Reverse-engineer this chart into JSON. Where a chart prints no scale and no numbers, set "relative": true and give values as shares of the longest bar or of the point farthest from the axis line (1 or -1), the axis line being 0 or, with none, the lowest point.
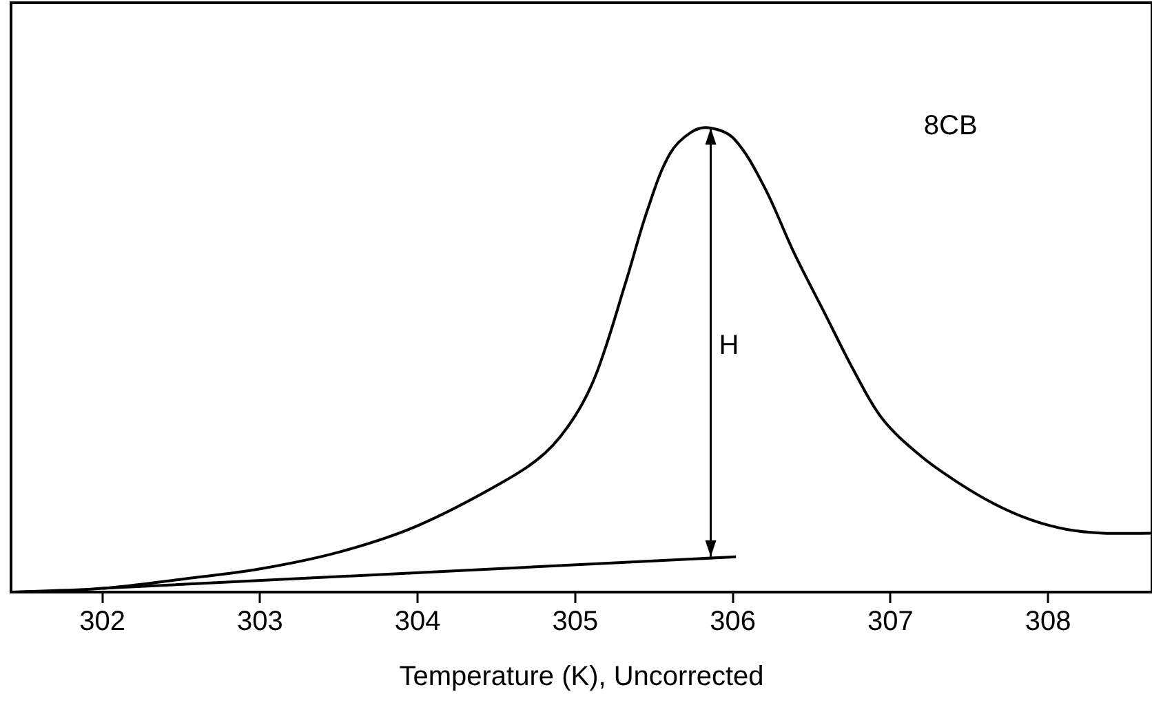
{
  "chart_data": {
    "type": "line",
    "relative": true,
    "xlabel": "Temperature (K), Uncorrected",
    "xlim": [
      301.42,
      308.66
    ],
    "xticks": [
      302,
      303,
      304,
      305,
      306,
      307,
      308
    ],
    "grid": false,
    "legend": false,
    "marker": "none",
    "series": [
      {
        "color": "#000000",
        "x": [
          301.42,
          302,
          302.53,
          303,
          303.51,
          304,
          304.53,
          304.81,
          305,
          305.14,
          305.32,
          305.46,
          305.6,
          305.74,
          305.86,
          306.01,
          306.2,
          306.39,
          306.58,
          306.77,
          306.95,
          307.19,
          307.42,
          307.66,
          307.89,
          308.12,
          308.35,
          308.66
        ],
        "values": [
          0,
          0.008,
          0.029,
          0.05,
          0.087,
          0.143,
          0.235,
          0.3,
          0.38,
          0.476,
          0.667,
          0.825,
          0.944,
          0.992,
          1,
          0.976,
          0.873,
          0.73,
          0.603,
          0.476,
          0.373,
          0.294,
          0.238,
          0.19,
          0.156,
          0.135,
          0.127,
          0.127
        ]
      },
      {
        "color": "#000000",
        "x": [
          302,
          306.02
        ],
        "values": [
          0.008,
          0.076
        ]
      },
      {
        "color": "#000000",
        "x": [
          305.86,
          305.86
        ],
        "values": [
          0.076,
          1
        ]
      }
    ],
    "annotations": [
      {
        "text": "H",
        "x": 305.86,
        "y": 0.53
      },
      "8CB"
    ]
  }
}
